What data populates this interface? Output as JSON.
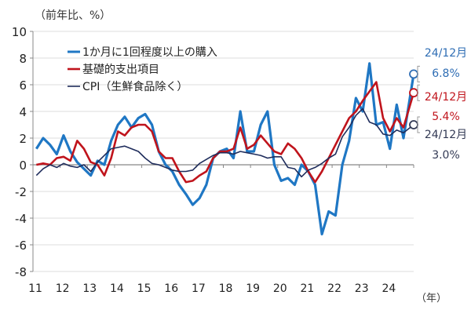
{
  "chart_data": {
    "type": "line",
    "ylabel": "（前年比、%）",
    "xlabel": "（年）",
    "ylim": [
      -8,
      10
    ],
    "yticks": [
      -8,
      -6,
      -4,
      -2,
      0,
      2,
      4,
      6,
      8,
      10
    ],
    "xtick_labels": [
      "11",
      "12",
      "13",
      "14",
      "15",
      "16",
      "17",
      "18",
      "19",
      "20",
      "21",
      "22",
      "23",
      "24"
    ],
    "x_note": "quarterly values 2011Q1–2024Q4",
    "grid": true,
    "legend_position": "top-left",
    "series": [
      {
        "name": "1か月に1回程度以上の購入",
        "color": "#1f77c4",
        "width": 3.2,
        "values": [
          1.2,
          2.0,
          1.5,
          0.8,
          2.2,
          1.0,
          0.2,
          -0.3,
          -0.8,
          0.3,
          0.0,
          1.8,
          3.0,
          3.6,
          2.8,
          3.5,
          3.8,
          3.0,
          1.0,
          0.0,
          -0.5,
          -1.5,
          -2.2,
          -3.0,
          -2.5,
          -1.5,
          0.5,
          1.0,
          1.2,
          0.5,
          4.0,
          1.0,
          1.0,
          3.0,
          4.0,
          0.0,
          -1.2,
          -1.0,
          -1.5,
          0.0,
          -0.5,
          -1.5,
          -5.2,
          -3.5,
          -3.8,
          0.0,
          1.8,
          5.0,
          4.0,
          7.6,
          3.0,
          3.2,
          1.2,
          4.5,
          2.0,
          6.8
        ]
      },
      {
        "name": "基礎的支出項目",
        "color": "#c0141c",
        "width": 2.6,
        "values": [
          0.0,
          0.1,
          0.0,
          0.5,
          0.6,
          0.3,
          1.8,
          1.2,
          0.2,
          0.0,
          -0.8,
          0.5,
          2.5,
          2.2,
          2.8,
          3.0,
          3.0,
          2.5,
          1.0,
          0.5,
          0.5,
          -0.5,
          -1.3,
          -1.2,
          -0.8,
          -0.5,
          0.5,
          1.0,
          1.0,
          1.2,
          2.8,
          1.2,
          1.5,
          2.2,
          1.6,
          1.0,
          0.8,
          1.6,
          1.2,
          0.5,
          -0.5,
          -1.3,
          -0.5,
          0.5,
          1.5,
          2.5,
          3.5,
          4.0,
          4.8,
          5.5,
          6.2,
          3.5,
          2.5,
          3.5,
          2.8,
          5.4
        ]
      },
      {
        "name": "CPI（生鮮食品除く）",
        "color": "#1f2d5c",
        "width": 1.6,
        "values": [
          -0.8,
          -0.3,
          0.0,
          -0.2,
          0.1,
          -0.1,
          -0.2,
          0.0,
          -0.5,
          0.2,
          0.7,
          1.2,
          1.3,
          1.4,
          1.2,
          1.0,
          0.5,
          0.1,
          0.0,
          -0.2,
          -0.4,
          -0.5,
          -0.5,
          -0.4,
          0.1,
          0.4,
          0.7,
          0.9,
          0.9,
          0.8,
          1.0,
          0.9,
          0.8,
          0.7,
          0.5,
          0.6,
          0.6,
          -0.2,
          -0.3,
          -0.9,
          -0.4,
          -0.2,
          0.1,
          0.5,
          0.8,
          2.1,
          2.8,
          3.7,
          4.2,
          3.2,
          3.0,
          2.3,
          2.2,
          2.6,
          2.4,
          3.0
        ]
      }
    ],
    "annotations": [
      {
        "period": "24/12月",
        "value": "6.8%",
        "color": "#2e6db4",
        "series": 0
      },
      {
        "period": "24/12月",
        "value": "5.4%",
        "color": "#c0141c",
        "series": 1
      },
      {
        "period": "24/12月",
        "value": "3.0%",
        "color": "#333a55",
        "series": 2
      }
    ]
  }
}
